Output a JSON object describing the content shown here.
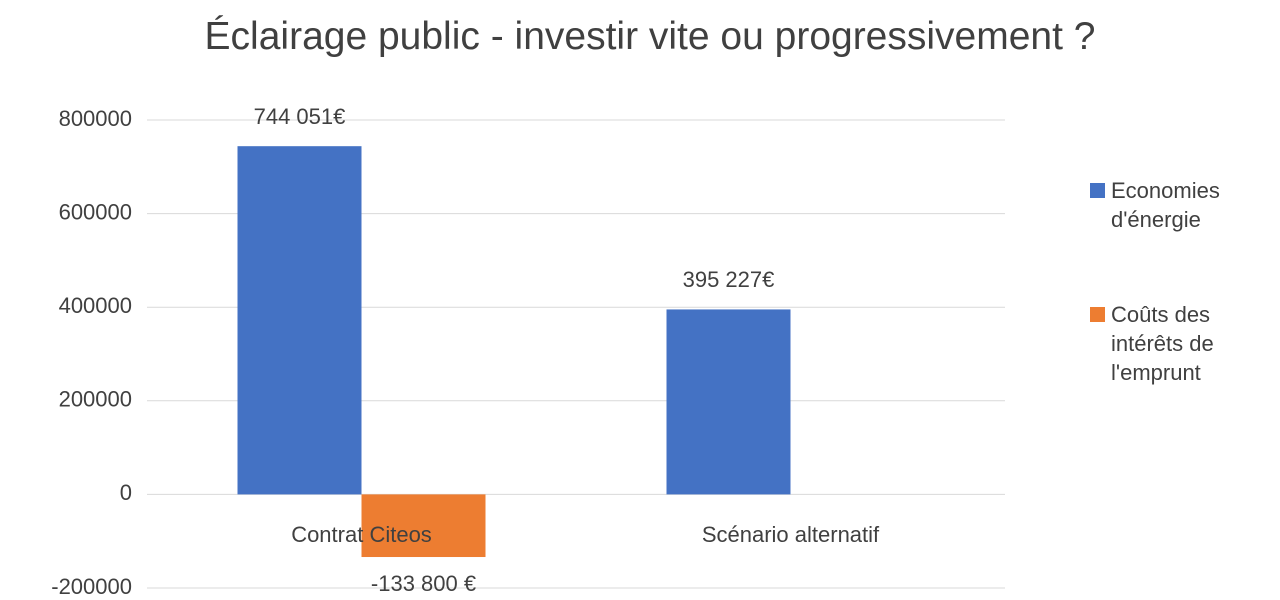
{
  "chart_data": {
    "type": "bar",
    "title": "Éclairage public - investir vite ou progressivement ?",
    "categories": [
      "Contrat Citeos",
      "Scénario alternatif"
    ],
    "series": [
      {
        "name": "Economies d'énergie",
        "color": "#4472c4",
        "values": [
          744051,
          395227
        ],
        "value_labels": [
          "744 051€",
          "395 227€"
        ]
      },
      {
        "name": "Coûts des intérêts de l'emprunt",
        "color": "#ed7d31",
        "values": [
          -133800,
          null
        ],
        "value_labels": [
          "-133 800 €",
          null
        ]
      }
    ],
    "ylim": [
      -200000,
      800000
    ],
    "yticks": [
      -200000,
      0,
      200000,
      400000,
      600000,
      800000
    ],
    "grid": true,
    "legend": "right"
  }
}
